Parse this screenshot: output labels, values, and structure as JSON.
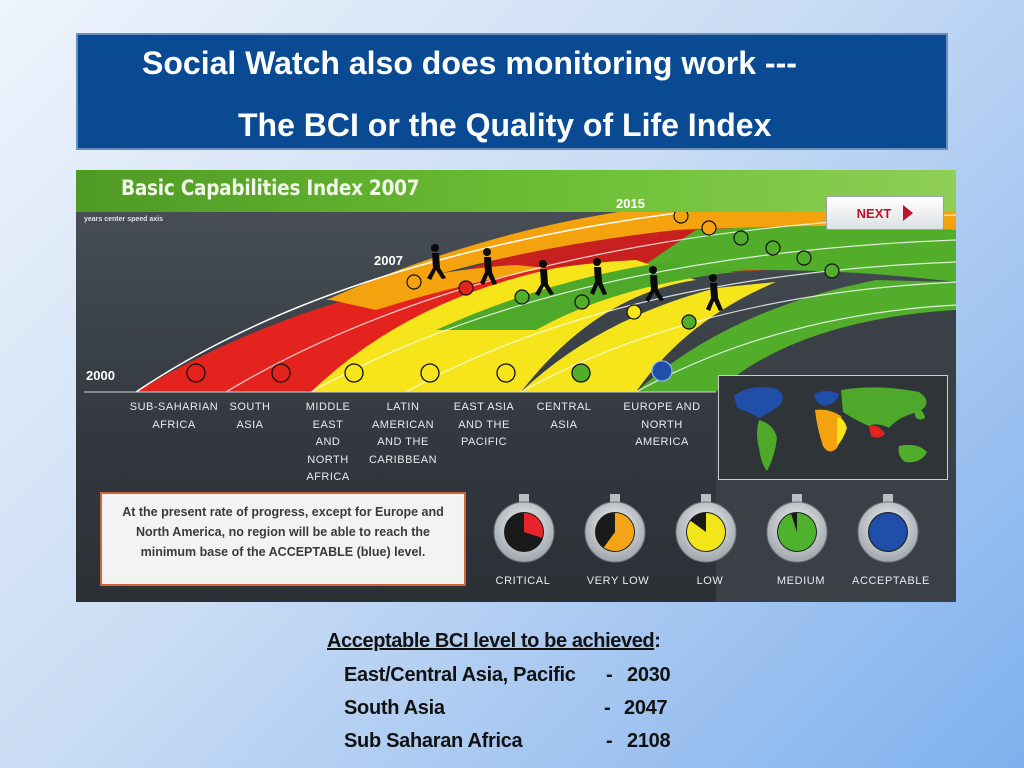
{
  "slide": {
    "title_line1": "Social Watch also does monitoring work ---",
    "title_line2": "The BCI or the Quality of Life Index"
  },
  "graphic": {
    "banner_title": "Basic Capabilities Index 2007",
    "small_caption": "years center speed axis",
    "year_2000": "2000",
    "year_2007": "2007",
    "year_2015": "2015",
    "next_label": "NEXT",
    "regions": [
      {
        "lines": [
          "SUB-SAHARIAN",
          "AFRICA"
        ],
        "level": "critical"
      },
      {
        "lines": [
          "SOUTH",
          "ASIA"
        ],
        "level": "critical"
      },
      {
        "lines": [
          "MIDDLE",
          "EAST",
          "AND",
          "NORTH",
          "AFRICA"
        ],
        "level": "low"
      },
      {
        "lines": [
          "LATIN",
          "AMERICAN",
          "AND THE",
          "CARIBBEAN"
        ],
        "level": "low"
      },
      {
        "lines": [
          "EAST ASIA",
          "AND THE",
          "PACIFIC"
        ],
        "level": "low"
      },
      {
        "lines": [
          "CENTRAL",
          "ASIA"
        ],
        "level": "medium"
      },
      {
        "lines": [
          "EUROPE AND",
          "NORTH",
          "AMERICA"
        ],
        "level": "acceptable"
      }
    ],
    "note_text": "At the present rate of progress, except for Europe and North America, no region will be able to reach the minimum base of the ACCEPTABLE (blue) level.",
    "legend": [
      {
        "label": "CRITICAL",
        "color": "#e8242a",
        "fill": 0.3
      },
      {
        "label": "VERY LOW",
        "color": "#f5a418",
        "fill": 0.6
      },
      {
        "label": "LOW",
        "color": "#f2e51a",
        "fill": 0.85
      },
      {
        "label": "MEDIUM",
        "color": "#4fb22e",
        "fill": 0.95
      },
      {
        "label": "ACCEPTABLE",
        "color": "#1f4fa8",
        "fill": 1.0
      }
    ]
  },
  "bottom": {
    "heading": "Acceptable BCI level to be achieved",
    "colon": ":",
    "rows": [
      {
        "region": "East/Central Asia, Pacific",
        "sep": "-",
        "year": "2030"
      },
      {
        "region": "South Asia",
        "sep": "-",
        "year": "2047"
      },
      {
        "region": "Sub Saharan Africa",
        "sep": "-",
        "year": "2108"
      }
    ]
  }
}
